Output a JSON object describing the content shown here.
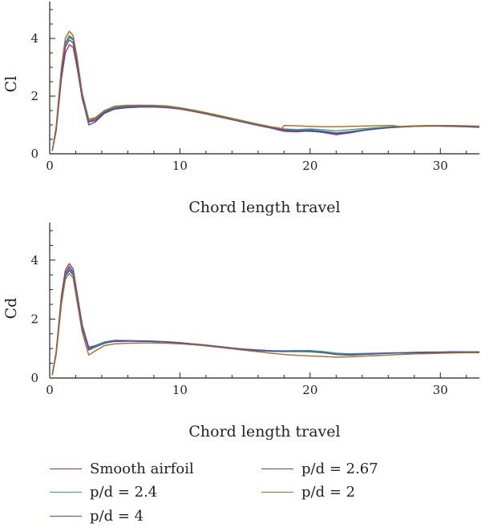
{
  "chart_data": [
    {
      "type": "line",
      "xlabel": "Chord length travel",
      "ylabel": "Cl",
      "xlim": [
        0,
        33
      ],
      "ylim": [
        0,
        5
      ],
      "xticks": [
        0,
        10,
        20,
        30
      ],
      "yticks": [
        0,
        2,
        4
      ],
      "grid": false,
      "series": [
        {
          "name": "Smooth airfoil",
          "color": "#d7263d",
          "x": [
            0.2,
            0.5,
            0.9,
            1.2,
            1.5,
            1.8,
            2.1,
            2.5,
            3.0,
            3.5,
            4.2,
            5,
            6,
            7,
            8,
            9,
            10,
            11,
            12,
            13,
            14,
            15,
            16,
            17,
            18,
            19,
            20,
            21,
            22,
            23,
            24,
            25,
            26,
            27,
            28,
            29,
            30,
            31,
            32,
            33
          ],
          "y": [
            0.1,
            0.8,
            2.6,
            3.5,
            3.78,
            3.7,
            3.0,
            1.9,
            1.1,
            1.15,
            1.42,
            1.55,
            1.6,
            1.62,
            1.62,
            1.6,
            1.55,
            1.47,
            1.38,
            1.28,
            1.18,
            1.08,
            0.98,
            0.89,
            0.78,
            0.76,
            0.8,
            0.74,
            0.66,
            0.72,
            0.8,
            0.86,
            0.9,
            0.93,
            0.95,
            0.96,
            0.96,
            0.95,
            0.94,
            0.92
          ]
        },
        {
          "name": "p/d = 2.67",
          "color": "#5b3fd1",
          "x": [
            0.2,
            0.5,
            0.9,
            1.2,
            1.5,
            1.8,
            2.1,
            2.5,
            3.0,
            3.5,
            4.2,
            5,
            6,
            7,
            8,
            9,
            10,
            11,
            12,
            13,
            14,
            15,
            16,
            17,
            18,
            19,
            20,
            21,
            22,
            23,
            24,
            25,
            26,
            27,
            28,
            29,
            30,
            31,
            32,
            33
          ],
          "y": [
            0.1,
            0.9,
            2.8,
            3.8,
            4.05,
            3.95,
            3.2,
            2.0,
            1.12,
            1.2,
            1.45,
            1.58,
            1.63,
            1.65,
            1.65,
            1.63,
            1.57,
            1.49,
            1.4,
            1.3,
            1.2,
            1.1,
            1.0,
            0.91,
            0.83,
            0.8,
            0.82,
            0.78,
            0.72,
            0.76,
            0.82,
            0.87,
            0.91,
            0.94,
            0.96,
            0.97,
            0.97,
            0.96,
            0.95,
            0.93
          ]
        },
        {
          "name": "p/d = 2.4",
          "color": "#3aa845",
          "x": [
            0.2,
            0.5,
            0.9,
            1.2,
            1.5,
            1.8,
            2.1,
            2.5,
            3.0,
            3.5,
            4.2,
            5,
            6,
            7,
            8,
            9,
            10,
            11,
            12,
            13,
            14,
            15,
            16,
            17,
            18,
            19,
            20,
            21,
            22,
            23,
            24,
            25,
            26,
            27,
            28,
            29,
            30,
            31,
            32,
            33
          ],
          "y": [
            0.1,
            0.9,
            2.9,
            3.85,
            4.1,
            4.0,
            3.25,
            2.05,
            1.15,
            1.22,
            1.48,
            1.61,
            1.66,
            1.68,
            1.68,
            1.66,
            1.6,
            1.52,
            1.43,
            1.33,
            1.23,
            1.13,
            1.03,
            0.94,
            0.86,
            0.84,
            0.86,
            0.83,
            0.79,
            0.83,
            0.87,
            0.9,
            0.93,
            0.95,
            0.97,
            0.98,
            0.98,
            0.97,
            0.96,
            0.94
          ]
        },
        {
          "name": "p/d = 4",
          "color": "#3057c4",
          "x": [
            0.2,
            0.5,
            0.9,
            1.2,
            1.5,
            1.8,
            2.1,
            2.5,
            3.0,
            3.5,
            4.2,
            5,
            6,
            7,
            8,
            9,
            10,
            11,
            12,
            13,
            14,
            15,
            16,
            17,
            18,
            19,
            20,
            21,
            22,
            23,
            24,
            25,
            26,
            27,
            28,
            29,
            30,
            31,
            32,
            33
          ],
          "y": [
            0.1,
            0.85,
            2.7,
            3.7,
            3.95,
            3.85,
            3.1,
            1.95,
            1.0,
            1.1,
            1.4,
            1.56,
            1.61,
            1.63,
            1.63,
            1.61,
            1.56,
            1.48,
            1.39,
            1.29,
            1.19,
            1.09,
            0.99,
            0.9,
            0.82,
            0.79,
            0.78,
            0.75,
            0.7,
            0.74,
            0.81,
            0.86,
            0.9,
            0.93,
            0.95,
            0.96,
            0.96,
            0.95,
            0.94,
            0.92
          ]
        },
        {
          "name": "p/d = 2",
          "color": "#b5651d",
          "x": [
            0.2,
            0.5,
            0.9,
            1.2,
            1.5,
            1.8,
            2.1,
            2.5,
            3.0,
            3.5,
            4.2,
            5,
            6,
            7,
            8,
            9,
            10,
            11,
            12,
            13,
            14,
            15,
            16,
            17,
            17.8,
            18,
            19,
            20,
            21,
            22,
            23,
            24,
            25,
            26,
            26.3,
            27,
            28,
            29,
            30,
            31,
            32,
            33
          ],
          "y": [
            0.1,
            0.95,
            3.0,
            4.0,
            4.25,
            4.1,
            3.35,
            2.1,
            1.2,
            1.25,
            1.5,
            1.65,
            1.68,
            1.68,
            1.67,
            1.64,
            1.58,
            1.5,
            1.41,
            1.31,
            1.21,
            1.11,
            1.01,
            0.93,
            0.87,
            0.98,
            0.97,
            0.95,
            0.94,
            0.94,
            0.95,
            0.96,
            0.97,
            0.98,
            0.98,
            0.94,
            0.96,
            0.97,
            0.98,
            0.98,
            0.97,
            0.96
          ]
        }
      ]
    },
    {
      "type": "line",
      "xlabel": "Chord length travel",
      "ylabel": "Cd",
      "xlim": [
        0,
        33
      ],
      "ylim": [
        0,
        5
      ],
      "xticks": [
        0,
        10,
        20,
        30
      ],
      "yticks": [
        0,
        2,
        4
      ],
      "grid": false,
      "series": [
        {
          "name": "Smooth airfoil",
          "color": "#d7263d",
          "x": [
            0.2,
            0.5,
            0.9,
            1.2,
            1.5,
            1.8,
            2.1,
            2.5,
            3.0,
            3.5,
            4.2,
            5,
            6,
            7,
            8,
            9,
            10,
            11,
            12,
            13,
            14,
            15,
            16,
            17,
            18,
            19,
            20,
            21,
            22,
            23,
            24,
            25,
            26,
            27,
            28,
            29,
            30,
            31,
            32,
            33
          ],
          "y": [
            0.1,
            0.9,
            2.8,
            3.65,
            3.88,
            3.7,
            2.9,
            1.8,
            1.05,
            1.1,
            1.2,
            1.24,
            1.25,
            1.25,
            1.24,
            1.22,
            1.19,
            1.15,
            1.11,
            1.06,
            1.01,
            0.96,
            0.93,
            0.91,
            0.9,
            0.91,
            0.92,
            0.88,
            0.8,
            0.78,
            0.8,
            0.82,
            0.84,
            0.85,
            0.86,
            0.87,
            0.87,
            0.88,
            0.88,
            0.88
          ]
        },
        {
          "name": "p/d = 2.67",
          "color": "#5b3fd1",
          "x": [
            0.2,
            0.5,
            0.9,
            1.2,
            1.5,
            1.8,
            2.1,
            2.5,
            3.0,
            3.5,
            4.2,
            5,
            6,
            7,
            8,
            9,
            10,
            11,
            12,
            13,
            14,
            15,
            16,
            17,
            18,
            19,
            20,
            21,
            22,
            23,
            24,
            25,
            26,
            27,
            28,
            29,
            30,
            31,
            32,
            33
          ],
          "y": [
            0.1,
            0.85,
            2.7,
            3.55,
            3.78,
            3.6,
            2.85,
            1.75,
            1.0,
            1.1,
            1.22,
            1.28,
            1.27,
            1.26,
            1.25,
            1.23,
            1.2,
            1.16,
            1.12,
            1.07,
            1.02,
            0.98,
            0.95,
            0.93,
            0.92,
            0.93,
            0.93,
            0.9,
            0.84,
            0.82,
            0.83,
            0.84,
            0.85,
            0.86,
            0.87,
            0.88,
            0.88,
            0.89,
            0.89,
            0.89
          ]
        },
        {
          "name": "p/d = 2.4",
          "color": "#3aa845",
          "x": [
            0.2,
            0.5,
            0.9,
            1.2,
            1.5,
            1.8,
            2.1,
            2.5,
            3.0,
            3.5,
            4.2,
            5,
            6,
            7,
            8,
            9,
            10,
            11,
            12,
            13,
            14,
            15,
            16,
            17,
            18,
            19,
            20,
            21,
            22,
            23,
            24,
            25,
            26,
            27,
            28,
            29,
            30,
            31,
            32,
            33
          ],
          "y": [
            0.1,
            0.85,
            2.65,
            3.5,
            3.72,
            3.55,
            2.8,
            1.72,
            0.98,
            1.08,
            1.2,
            1.26,
            1.26,
            1.25,
            1.24,
            1.22,
            1.19,
            1.15,
            1.11,
            1.06,
            1.01,
            0.97,
            0.94,
            0.92,
            0.91,
            0.92,
            0.92,
            0.89,
            0.83,
            0.81,
            0.82,
            0.83,
            0.85,
            0.86,
            0.87,
            0.87,
            0.88,
            0.88,
            0.89,
            0.89
          ]
        },
        {
          "name": "p/d = 4",
          "color": "#3057c4",
          "x": [
            0.2,
            0.5,
            0.9,
            1.2,
            1.5,
            1.8,
            2.1,
            2.5,
            3.0,
            3.5,
            4.2,
            5,
            6,
            7,
            8,
            9,
            10,
            11,
            12,
            13,
            14,
            15,
            16,
            17,
            18,
            19,
            20,
            21,
            22,
            23,
            24,
            25,
            26,
            27,
            28,
            29,
            30,
            31,
            32,
            33
          ],
          "y": [
            0.1,
            0.85,
            2.6,
            3.45,
            3.65,
            3.5,
            2.75,
            1.7,
            0.95,
            1.05,
            1.18,
            1.25,
            1.26,
            1.25,
            1.24,
            1.22,
            1.19,
            1.15,
            1.11,
            1.06,
            1.01,
            0.97,
            0.93,
            0.91,
            0.9,
            0.9,
            0.89,
            0.86,
            0.8,
            0.78,
            0.8,
            0.82,
            0.84,
            0.85,
            0.86,
            0.87,
            0.87,
            0.88,
            0.88,
            0.88
          ]
        },
        {
          "name": "p/d = 2",
          "color": "#b5651d",
          "x": [
            0.2,
            0.5,
            0.9,
            1.2,
            1.5,
            1.8,
            2.1,
            2.5,
            3.0,
            3.5,
            4.2,
            5,
            6,
            7,
            8,
            9,
            10,
            11,
            12,
            13,
            14,
            15,
            16,
            17,
            18,
            19,
            20,
            21,
            22,
            23,
            24,
            25,
            26,
            27,
            28,
            29,
            30,
            31,
            32,
            33
          ],
          "y": [
            0.1,
            0.8,
            2.5,
            3.35,
            3.55,
            3.4,
            2.6,
            1.55,
            0.78,
            0.92,
            1.1,
            1.16,
            1.18,
            1.19,
            1.19,
            1.18,
            1.16,
            1.13,
            1.09,
            1.04,
            0.99,
            0.94,
            0.89,
            0.84,
            0.8,
            0.77,
            0.75,
            0.73,
            0.71,
            0.72,
            0.74,
            0.76,
            0.78,
            0.8,
            0.82,
            0.83,
            0.84,
            0.85,
            0.86,
            0.86
          ]
        }
      ]
    }
  ],
  "legend": {
    "items": [
      {
        "label": "Smooth airfoil",
        "color": "#d7263d"
      },
      {
        "label": "p/d = 2.4",
        "color": "#3aa845"
      },
      {
        "label": "p/d = 4",
        "color": "#3057c4"
      },
      {
        "label": "p/d = 2.67",
        "color": "#5b3fd1"
      },
      {
        "label": "p/d = 2",
        "color": "#b5651d"
      }
    ]
  }
}
